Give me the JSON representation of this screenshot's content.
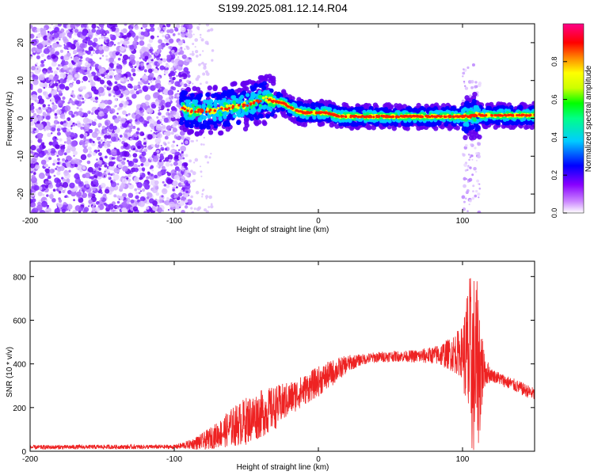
{
  "title": "S199.2025.081.12.14.R04",
  "colors": {
    "line": "#ee2222",
    "axis": "#000000",
    "background": "#ffffff",
    "colormap": [
      "#ffffff",
      "#cc88ff",
      "#8800ff",
      "#0000ff",
      "#00ccff",
      "#00ff88",
      "#00ff00",
      "#ccff00",
      "#ffff00",
      "#ff8800",
      "#ff0000",
      "#ff0088"
    ]
  },
  "chart_data": [
    {
      "type": "heatmap",
      "name": "spectrogram",
      "xlabel": "Height of straight line (km)",
      "ylabel": "Frequency (Hz)",
      "xlim": [
        -200,
        150
      ],
      "ylim": [
        -25,
        25
      ],
      "x_ticks": [
        -200,
        -100,
        0,
        100
      ],
      "x_tick_labels": [
        "-200",
        "-100",
        "0",
        "100"
      ],
      "y_ticks": [
        -20,
        -10,
        0,
        10,
        20
      ],
      "y_tick_labels": [
        "-20",
        "-10",
        "0",
        "10",
        "20"
      ],
      "colorbar": {
        "label": "Normalized spectral amplitude",
        "range": [
          0,
          1
        ],
        "ticks": [
          0.0,
          0.2,
          0.4,
          0.6,
          0.8
        ],
        "tick_labels": [
          "0.0",
          "0.2",
          "0.4",
          "0.6",
          "0.8"
        ]
      },
      "ridge": {
        "description": "frequency of dominant ridge vs height",
        "x": [
          -95,
          -90,
          -80,
          -70,
          -60,
          -50,
          -42,
          -36,
          -30,
          -24,
          -20,
          -15,
          -10,
          -5,
          0,
          5,
          10,
          15,
          30,
          50,
          70,
          90,
          100,
          105,
          110,
          120,
          150
        ],
        "y": [
          3,
          2,
          2,
          2,
          3,
          3.5,
          4.5,
          5,
          4.5,
          4,
          3,
          2,
          1.5,
          1.5,
          1.5,
          1.5,
          1,
          0.5,
          0.5,
          0.5,
          0.5,
          0.5,
          0.5,
          0.5,
          0.8,
          0.8,
          0.8
        ]
      },
      "noise_region": {
        "x_from": -200,
        "x_to": -95
      }
    },
    {
      "type": "line",
      "name": "snr",
      "xlabel": "Height of straight line (km)",
      "ylabel": "SNR (10 * v/v)",
      "xlim": [
        -200,
        150
      ],
      "ylim": [
        0,
        870
      ],
      "x_ticks": [
        -200,
        -100,
        0,
        100
      ],
      "x_tick_labels": [
        "-200",
        "-100",
        "0",
        "100"
      ],
      "y_ticks": [
        0,
        200,
        400,
        600,
        800
      ],
      "y_tick_labels": [
        "0",
        "200",
        "400",
        "600",
        "800"
      ],
      "envelope": {
        "x": [
          -200,
          -150,
          -100,
          -90,
          -80,
          -70,
          -60,
          -50,
          -40,
          -30,
          -20,
          -10,
          0,
          10,
          20,
          30,
          40,
          50,
          60,
          70,
          80,
          90,
          100,
          103,
          106,
          110,
          115,
          120,
          130,
          140,
          150
        ],
        "y": [
          18,
          20,
          20,
          30,
          45,
          75,
          110,
          140,
          170,
          200,
          240,
          280,
          320,
          360,
          400,
          420,
          430,
          435,
          435,
          435,
          440,
          445,
          455,
          430,
          400,
          390,
          370,
          350,
          320,
          290,
          260
        ]
      },
      "noise_amplitude": {
        "x": [
          -200,
          -100,
          -90,
          -80,
          -70,
          -60,
          -50,
          -40,
          -30,
          -20,
          -10,
          0,
          10,
          20,
          30,
          60,
          80,
          90,
          100,
          104,
          108,
          112,
          115,
          120,
          150
        ],
        "y": [
          10,
          10,
          20,
          40,
          60,
          90,
          110,
          110,
          100,
          80,
          70,
          70,
          60,
          40,
          25,
          25,
          40,
          70,
          120,
          380,
          450,
          330,
          80,
          30,
          30
        ]
      }
    }
  ]
}
